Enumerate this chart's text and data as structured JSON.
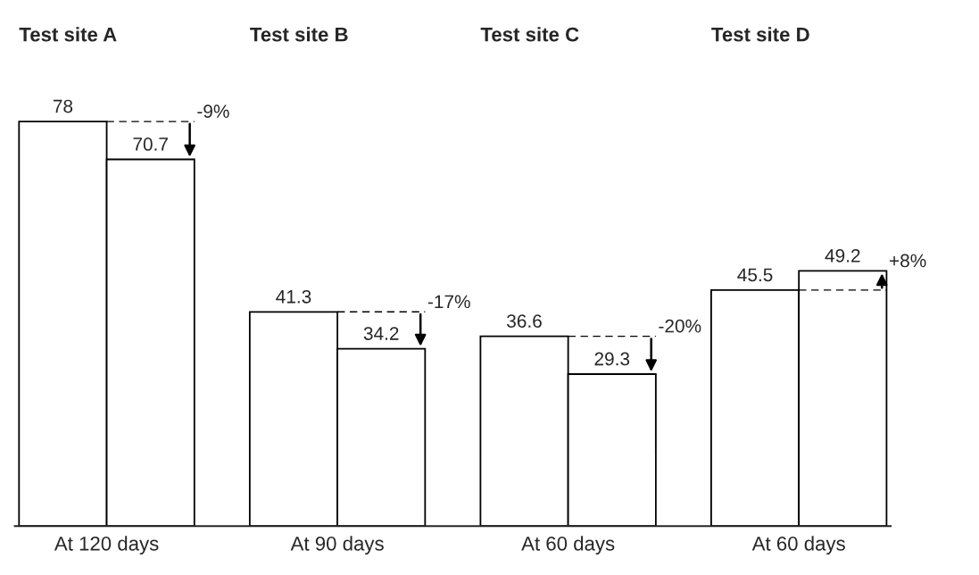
{
  "chart_data": {
    "type": "bar",
    "categories": [
      "At 120 days",
      "At 90 days",
      "At 60 days",
      "At 60 days"
    ],
    "series": [
      {
        "color": "#ffffff",
        "values": [
          78,
          41.3,
          36.6,
          45.5
        ]
      },
      {
        "color": "#ffffff",
        "values": [
          70.7,
          34.2,
          29.3,
          49.2
        ]
      }
    ],
    "data_labels": true,
    "tick_labels": "x",
    "grid": false,
    "annotations": [
      "Test site A",
      "Test site B",
      "Test site C",
      "Test site D",
      "-9%",
      "-17%",
      "-20%",
      "+8%"
    ]
  }
}
